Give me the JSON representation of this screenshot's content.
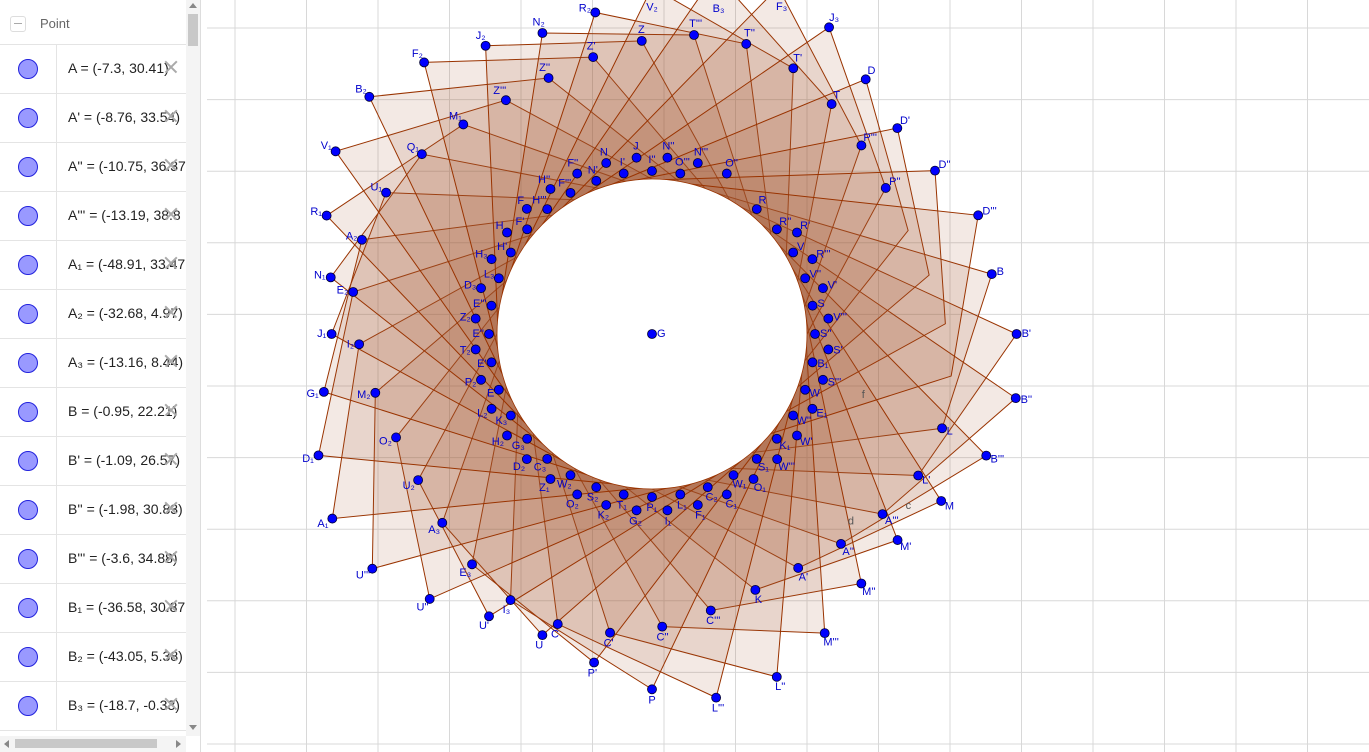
{
  "algebra": {
    "group_label": "Point",
    "collapse_icon": "minus",
    "items": [
      {
        "text": "A = (-7.3, 30.41)"
      },
      {
        "text": "A' = (-8.76, 33.54)"
      },
      {
        "text": "A'' = (-10.75, 36.37"
      },
      {
        "text": "A''' = (-13.19, 38.8"
      },
      {
        "text": "A₁ = (-48.91, 33.47"
      },
      {
        "text": "A₂ = (-32.68, 4.97)"
      },
      {
        "text": "A₃ = (-13.16, 8.44)"
      },
      {
        "text": "B = (-0.95, 22.21)"
      },
      {
        "text": "B' = (-1.09, 26.57)"
      },
      {
        "text": "B'' = (-1.98, 30.83)"
      },
      {
        "text": "B''' = (-3.6, 34.88)"
      },
      {
        "text": "B₁ = (-36.58, 30.87"
      },
      {
        "text": "B₂ = (-43.05, 5.38)"
      },
      {
        "text": "B₃ = (-18.7, -0.33)"
      }
    ]
  },
  "graphics": {
    "center_label": "G",
    "extra_labels": [
      "f",
      "c",
      "d"
    ],
    "outer_labels": [
      "B",
      "B'",
      "B''",
      "B'''",
      "M",
      "M'",
      "M''",
      "M'''",
      "L''",
      "L'''",
      "P",
      "P'",
      "U",
      "U'",
      "U''",
      "U'''",
      "A₁",
      "D₁",
      "G₁",
      "J₁",
      "N₁",
      "R₁",
      "V₁",
      "B₂",
      "F₂",
      "J₂",
      "N₂",
      "R₂",
      "V₂",
      "B₃",
      "F₃",
      "J₃",
      "D",
      "D'",
      "D''",
      "D'''"
    ],
    "inner_labels": [
      "R",
      "R'",
      "R''",
      "R'''",
      "V",
      "V'",
      "V''",
      "V'''",
      "S",
      "S'",
      "S''",
      "S'''",
      "B₁",
      "E₁",
      "W",
      "W'",
      "W''",
      "W'''",
      "K₁",
      "O₁",
      "S₁",
      "C₁",
      "W₁",
      "F₁",
      "C₂",
      "I₁",
      "L₁",
      "G₂",
      "P₁",
      "K₂",
      "T₁",
      "O₂",
      "S₂",
      "Z₁",
      "W₂",
      "D₂",
      "C₃",
      "H₂",
      "G₃",
      "L₂",
      "K₃",
      "P₂",
      "E",
      "T₂",
      "E'",
      "Z₂",
      "E''",
      "D₃",
      "E'''",
      "H₃",
      "L₃",
      "H",
      "H'",
      "F",
      "F'",
      "H''",
      "H'''",
      "F''",
      "F'''",
      "N",
      "N'",
      "J",
      "I'",
      "N''",
      "I''",
      "N'''",
      "O'''",
      "O''"
    ],
    "mid_labels": [
      "L",
      "L'",
      "A'''",
      "A''",
      "A'",
      "K",
      "C'''",
      "C''",
      "C'",
      "C",
      "I₃",
      "E₃",
      "A₃",
      "U₂",
      "O₂",
      "M₂",
      "I₂",
      "E₂",
      "A₂",
      "U₁",
      "Q₁",
      "M₁",
      "Z'''",
      "Z''",
      "Z'",
      "Z",
      "T'''",
      "T''",
      "T'",
      "T",
      "P'''",
      "P''"
    ],
    "colors": {
      "fill": "#a0522d",
      "stroke": "#993300",
      "point": "#0000ff",
      "grid": "#d8d8d8"
    }
  }
}
